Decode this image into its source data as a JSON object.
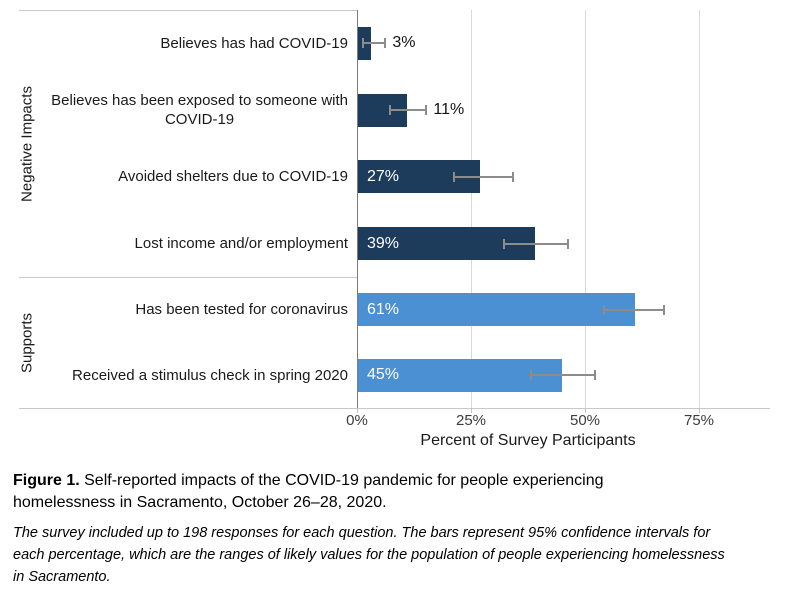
{
  "chart_data": {
    "type": "bar",
    "orientation": "horizontal",
    "xlabel": "Percent of Survey Participants",
    "x_ticks": [
      "0%",
      "25%",
      "50%",
      "75%"
    ],
    "x_tick_values": [
      0,
      25,
      50,
      75
    ],
    "xlim": [
      0,
      90
    ],
    "grid": "vertical-only",
    "error_bars": "95% confidence intervals",
    "colors": {
      "negative_impacts_bar": "#1d3c5b",
      "supports_bar": "#4a90d3",
      "error_bar": "#8c8c8c",
      "gridline": "#d9d9d9",
      "panel_border": "#c8c8c8"
    },
    "facets": [
      {
        "label": "Negative Impacts",
        "bar_color": "#1d3c5b",
        "rows": [
          {
            "label_lines": [
              "Believes has had COVID-19"
            ],
            "value": 3,
            "value_label": "3%",
            "ci": [
              1,
              6
            ],
            "label_inside": false
          },
          {
            "label_lines": [
              "Believes has been exposed to someone with",
              "COVID-19"
            ],
            "value": 11,
            "value_label": "11%",
            "ci": [
              7,
              15
            ],
            "label_inside": false
          },
          {
            "label_lines": [
              "Avoided shelters due to COVID-19"
            ],
            "value": 27,
            "value_label": "27%",
            "ci": [
              21,
              34
            ],
            "label_inside": true
          },
          {
            "label_lines": [
              "Lost income and/or employment"
            ],
            "value": 39,
            "value_label": "39%",
            "ci": [
              32,
              46
            ],
            "label_inside": true
          }
        ]
      },
      {
        "label": "Supports",
        "bar_color": "#4a90d3",
        "rows": [
          {
            "label_lines": [
              "Has been tested for coronavirus"
            ],
            "value": 61,
            "value_label": "61%",
            "ci": [
              54,
              67
            ],
            "label_inside": true
          },
          {
            "label_lines": [
              "Received a stimulus check in spring 2020"
            ],
            "value": 45,
            "value_label": "45%",
            "ci": [
              38,
              52
            ],
            "label_inside": true
          }
        ]
      }
    ]
  },
  "axis": {
    "title": "Percent of Survey Participants"
  },
  "caption": {
    "prefix": "Figure 1.",
    "line1": " Self-reported impacts of the COVID-19 pandemic for people experiencing",
    "line2": "homelessness in Sacramento, October 26–28, 2020."
  },
  "note": {
    "line1": "The survey included up to 198 responses for each question. The bars represent 95% confidence intervals for",
    "line2": "each percentage, which are the ranges of likely values for the population of people experiencing homelessness",
    "line3": "in Sacramento."
  }
}
